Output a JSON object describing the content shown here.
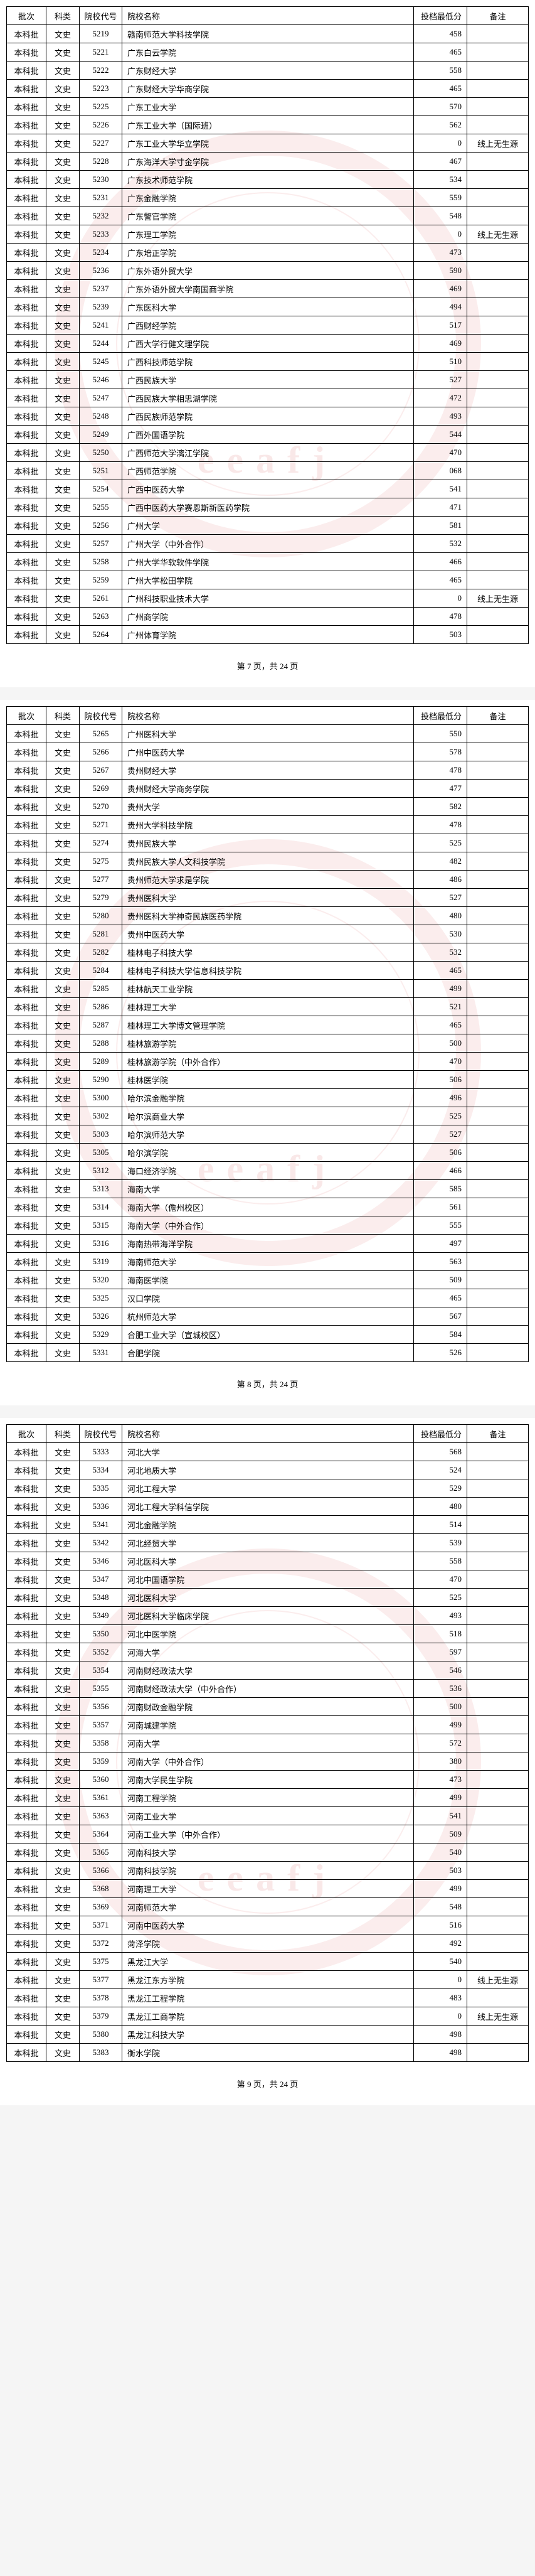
{
  "headers": {
    "batch": "批次",
    "category": "科类",
    "code": "院校代号",
    "name": "院校名称",
    "score": "投档最低分",
    "remark": "备注"
  },
  "footer_prefix": "第 ",
  "footer_mid": " 页，共 ",
  "footer_total": "24",
  "footer_suffix": " 页",
  "remark_no_source": "线上无生源",
  "pages": [
    {
      "page_num": "7",
      "rows": [
        {
          "batch": "本科批",
          "cat": "文史",
          "code": "5219",
          "name": "赣南师范大学科技学院",
          "score": "458",
          "remark": ""
        },
        {
          "batch": "本科批",
          "cat": "文史",
          "code": "5221",
          "name": "广东白云学院",
          "score": "465",
          "remark": ""
        },
        {
          "batch": "本科批",
          "cat": "文史",
          "code": "5222",
          "name": "广东财经大学",
          "score": "558",
          "remark": ""
        },
        {
          "batch": "本科批",
          "cat": "文史",
          "code": "5223",
          "name": "广东财经大学华商学院",
          "score": "465",
          "remark": ""
        },
        {
          "batch": "本科批",
          "cat": "文史",
          "code": "5225",
          "name": "广东工业大学",
          "score": "570",
          "remark": ""
        },
        {
          "batch": "本科批",
          "cat": "文史",
          "code": "5226",
          "name": "广东工业大学（国际班）",
          "score": "562",
          "remark": ""
        },
        {
          "batch": "本科批",
          "cat": "文史",
          "code": "5227",
          "name": "广东工业大学华立学院",
          "score": "0",
          "remark": "线上无生源"
        },
        {
          "batch": "本科批",
          "cat": "文史",
          "code": "5228",
          "name": "广东海洋大学寸金学院",
          "score": "467",
          "remark": ""
        },
        {
          "batch": "本科批",
          "cat": "文史",
          "code": "5230",
          "name": "广东技术师范学院",
          "score": "534",
          "remark": ""
        },
        {
          "batch": "本科批",
          "cat": "文史",
          "code": "5231",
          "name": "广东金融学院",
          "score": "559",
          "remark": ""
        },
        {
          "batch": "本科批",
          "cat": "文史",
          "code": "5232",
          "name": "广东警官学院",
          "score": "548",
          "remark": ""
        },
        {
          "batch": "本科批",
          "cat": "文史",
          "code": "5233",
          "name": "广东理工学院",
          "score": "0",
          "remark": "线上无生源"
        },
        {
          "batch": "本科批",
          "cat": "文史",
          "code": "5234",
          "name": "广东培正学院",
          "score": "473",
          "remark": ""
        },
        {
          "batch": "本科批",
          "cat": "文史",
          "code": "5236",
          "name": "广东外语外贸大学",
          "score": "590",
          "remark": ""
        },
        {
          "batch": "本科批",
          "cat": "文史",
          "code": "5237",
          "name": "广东外语外贸大学南国商学院",
          "score": "469",
          "remark": ""
        },
        {
          "batch": "本科批",
          "cat": "文史",
          "code": "5239",
          "name": "广东医科大学",
          "score": "494",
          "remark": ""
        },
        {
          "batch": "本科批",
          "cat": "文史",
          "code": "5241",
          "name": "广西财经学院",
          "score": "517",
          "remark": ""
        },
        {
          "batch": "本科批",
          "cat": "文史",
          "code": "5244",
          "name": "广西大学行健文理学院",
          "score": "469",
          "remark": ""
        },
        {
          "batch": "本科批",
          "cat": "文史",
          "code": "5245",
          "name": "广西科技师范学院",
          "score": "510",
          "remark": ""
        },
        {
          "batch": "本科批",
          "cat": "文史",
          "code": "5246",
          "name": "广西民族大学",
          "score": "527",
          "remark": ""
        },
        {
          "batch": "本科批",
          "cat": "文史",
          "code": "5247",
          "name": "广西民族大学相思湖学院",
          "score": "472",
          "remark": ""
        },
        {
          "batch": "本科批",
          "cat": "文史",
          "code": "5248",
          "name": "广西民族师范学院",
          "score": "493",
          "remark": ""
        },
        {
          "batch": "本科批",
          "cat": "文史",
          "code": "5249",
          "name": "广西外国语学院",
          "score": "544",
          "remark": ""
        },
        {
          "batch": "本科批",
          "cat": "文史",
          "code": "5250",
          "name": "广西师范大学漓江学院",
          "score": "470",
          "remark": ""
        },
        {
          "batch": "本科批",
          "cat": "文史",
          "code": "5251",
          "name": "广西师范学院",
          "score": "068",
          "remark": ""
        },
        {
          "batch": "本科批",
          "cat": "文史",
          "code": "5254",
          "name": "广西中医药大学",
          "score": "541",
          "remark": ""
        },
        {
          "batch": "本科批",
          "cat": "文史",
          "code": "5255",
          "name": "广西中医药大学赛恩斯新医药学院",
          "score": "471",
          "remark": ""
        },
        {
          "batch": "本科批",
          "cat": "文史",
          "code": "5256",
          "name": "广州大学",
          "score": "581",
          "remark": ""
        },
        {
          "batch": "本科批",
          "cat": "文史",
          "code": "5257",
          "name": "广州大学（中外合作）",
          "score": "532",
          "remark": ""
        },
        {
          "batch": "本科批",
          "cat": "文史",
          "code": "5258",
          "name": "广州大学华软软件学院",
          "score": "466",
          "remark": ""
        },
        {
          "batch": "本科批",
          "cat": "文史",
          "code": "5259",
          "name": "广州大学松田学院",
          "score": "465",
          "remark": ""
        },
        {
          "batch": "本科批",
          "cat": "文史",
          "code": "5261",
          "name": "广州科技职业技术大学",
          "score": "0",
          "remark": "线上无生源"
        },
        {
          "batch": "本科批",
          "cat": "文史",
          "code": "5263",
          "name": "广州商学院",
          "score": "478",
          "remark": ""
        },
        {
          "batch": "本科批",
          "cat": "文史",
          "code": "5264",
          "name": "广州体育学院",
          "score": "503",
          "remark": ""
        }
      ]
    },
    {
      "page_num": "8",
      "rows": [
        {
          "batch": "本科批",
          "cat": "文史",
          "code": "5265",
          "name": "广州医科大学",
          "score": "550",
          "remark": ""
        },
        {
          "batch": "本科批",
          "cat": "文史",
          "code": "5266",
          "name": "广州中医药大学",
          "score": "578",
          "remark": ""
        },
        {
          "batch": "本科批",
          "cat": "文史",
          "code": "5267",
          "name": "贵州财经大学",
          "score": "478",
          "remark": ""
        },
        {
          "batch": "本科批",
          "cat": "文史",
          "code": "5269",
          "name": "贵州财经大学商务学院",
          "score": "477",
          "remark": ""
        },
        {
          "batch": "本科批",
          "cat": "文史",
          "code": "5270",
          "name": "贵州大学",
          "score": "582",
          "remark": ""
        },
        {
          "batch": "本科批",
          "cat": "文史",
          "code": "5271",
          "name": "贵州大学科技学院",
          "score": "478",
          "remark": ""
        },
        {
          "batch": "本科批",
          "cat": "文史",
          "code": "5274",
          "name": "贵州民族大学",
          "score": "525",
          "remark": ""
        },
        {
          "batch": "本科批",
          "cat": "文史",
          "code": "5275",
          "name": "贵州民族大学人文科技学院",
          "score": "482",
          "remark": ""
        },
        {
          "batch": "本科批",
          "cat": "文史",
          "code": "5277",
          "name": "贵州师范大学求是学院",
          "score": "486",
          "remark": ""
        },
        {
          "batch": "本科批",
          "cat": "文史",
          "code": "5279",
          "name": "贵州医科大学",
          "score": "527",
          "remark": ""
        },
        {
          "batch": "本科批",
          "cat": "文史",
          "code": "5280",
          "name": "贵州医科大学神奇民族医药学院",
          "score": "480",
          "remark": ""
        },
        {
          "batch": "本科批",
          "cat": "文史",
          "code": "5281",
          "name": "贵州中医药大学",
          "score": "530",
          "remark": ""
        },
        {
          "batch": "本科批",
          "cat": "文史",
          "code": "5282",
          "name": "桂林电子科技大学",
          "score": "532",
          "remark": ""
        },
        {
          "batch": "本科批",
          "cat": "文史",
          "code": "5284",
          "name": "桂林电子科技大学信息科技学院",
          "score": "465",
          "remark": ""
        },
        {
          "batch": "本科批",
          "cat": "文史",
          "code": "5285",
          "name": "桂林航天工业学院",
          "score": "499",
          "remark": ""
        },
        {
          "batch": "本科批",
          "cat": "文史",
          "code": "5286",
          "name": "桂林理工大学",
          "score": "521",
          "remark": ""
        },
        {
          "batch": "本科批",
          "cat": "文史",
          "code": "5287",
          "name": "桂林理工大学博文管理学院",
          "score": "465",
          "remark": ""
        },
        {
          "batch": "本科批",
          "cat": "文史",
          "code": "5288",
          "name": "桂林旅游学院",
          "score": "500",
          "remark": ""
        },
        {
          "batch": "本科批",
          "cat": "文史",
          "code": "5289",
          "name": "桂林旅游学院（中外合作）",
          "score": "470",
          "remark": ""
        },
        {
          "batch": "本科批",
          "cat": "文史",
          "code": "5290",
          "name": "桂林医学院",
          "score": "506",
          "remark": ""
        },
        {
          "batch": "本科批",
          "cat": "文史",
          "code": "5300",
          "name": "哈尔滨金融学院",
          "score": "496",
          "remark": ""
        },
        {
          "batch": "本科批",
          "cat": "文史",
          "code": "5302",
          "name": "哈尔滨商业大学",
          "score": "525",
          "remark": ""
        },
        {
          "batch": "本科批",
          "cat": "文史",
          "code": "5303",
          "name": "哈尔滨师范大学",
          "score": "527",
          "remark": ""
        },
        {
          "batch": "本科批",
          "cat": "文史",
          "code": "5305",
          "name": "哈尔滨学院",
          "score": "506",
          "remark": ""
        },
        {
          "batch": "本科批",
          "cat": "文史",
          "code": "5312",
          "name": "海口经济学院",
          "score": "466",
          "remark": ""
        },
        {
          "batch": "本科批",
          "cat": "文史",
          "code": "5313",
          "name": "海南大学",
          "score": "585",
          "remark": ""
        },
        {
          "batch": "本科批",
          "cat": "文史",
          "code": "5314",
          "name": "海南大学（儋州校区）",
          "score": "561",
          "remark": ""
        },
        {
          "batch": "本科批",
          "cat": "文史",
          "code": "5315",
          "name": "海南大学（中外合作）",
          "score": "555",
          "remark": ""
        },
        {
          "batch": "本科批",
          "cat": "文史",
          "code": "5316",
          "name": "海南热带海洋学院",
          "score": "497",
          "remark": ""
        },
        {
          "batch": "本科批",
          "cat": "文史",
          "code": "5319",
          "name": "海南师范大学",
          "score": "563",
          "remark": ""
        },
        {
          "batch": "本科批",
          "cat": "文史",
          "code": "5320",
          "name": "海南医学院",
          "score": "509",
          "remark": ""
        },
        {
          "batch": "本科批",
          "cat": "文史",
          "code": "5325",
          "name": "汉口学院",
          "score": "465",
          "remark": ""
        },
        {
          "batch": "本科批",
          "cat": "文史",
          "code": "5326",
          "name": "杭州师范大学",
          "score": "567",
          "remark": ""
        },
        {
          "batch": "本科批",
          "cat": "文史",
          "code": "5329",
          "name": "合肥工业大学（宣城校区）",
          "score": "584",
          "remark": ""
        },
        {
          "batch": "本科批",
          "cat": "文史",
          "code": "5331",
          "name": "合肥学院",
          "score": "526",
          "remark": ""
        }
      ]
    },
    {
      "page_num": "9",
      "rows": [
        {
          "batch": "本科批",
          "cat": "文史",
          "code": "5333",
          "name": "河北大学",
          "score": "568",
          "remark": ""
        },
        {
          "batch": "本科批",
          "cat": "文史",
          "code": "5334",
          "name": "河北地质大学",
          "score": "524",
          "remark": ""
        },
        {
          "batch": "本科批",
          "cat": "文史",
          "code": "5335",
          "name": "河北工程大学",
          "score": "529",
          "remark": ""
        },
        {
          "batch": "本科批",
          "cat": "文史",
          "code": "5336",
          "name": "河北工程大学科信学院",
          "score": "480",
          "remark": ""
        },
        {
          "batch": "本科批",
          "cat": "文史",
          "code": "5341",
          "name": "河北金融学院",
          "score": "514",
          "remark": ""
        },
        {
          "batch": "本科批",
          "cat": "文史",
          "code": "5342",
          "name": "河北经贸大学",
          "score": "539",
          "remark": ""
        },
        {
          "batch": "本科批",
          "cat": "文史",
          "code": "5346",
          "name": "河北医科大学",
          "score": "558",
          "remark": ""
        },
        {
          "batch": "本科批",
          "cat": "文史",
          "code": "5347",
          "name": "河北中国语学院",
          "score": "470",
          "remark": ""
        },
        {
          "batch": "本科批",
          "cat": "文史",
          "code": "5348",
          "name": "河北医科大学",
          "score": "525",
          "remark": ""
        },
        {
          "batch": "本科批",
          "cat": "文史",
          "code": "5349",
          "name": "河北医科大学临床学院",
          "score": "493",
          "remark": ""
        },
        {
          "batch": "本科批",
          "cat": "文史",
          "code": "5350",
          "name": "河北中医学院",
          "score": "518",
          "remark": ""
        },
        {
          "batch": "本科批",
          "cat": "文史",
          "code": "5352",
          "name": "河海大学",
          "score": "597",
          "remark": ""
        },
        {
          "batch": "本科批",
          "cat": "文史",
          "code": "5354",
          "name": "河南财经政法大学",
          "score": "546",
          "remark": ""
        },
        {
          "batch": "本科批",
          "cat": "文史",
          "code": "5355",
          "name": "河南财经政法大学（中外合作）",
          "score": "536",
          "remark": ""
        },
        {
          "batch": "本科批",
          "cat": "文史",
          "code": "5356",
          "name": "河南财政金融学院",
          "score": "500",
          "remark": ""
        },
        {
          "batch": "本科批",
          "cat": "文史",
          "code": "5357",
          "name": "河南城建学院",
          "score": "499",
          "remark": ""
        },
        {
          "batch": "本科批",
          "cat": "文史",
          "code": "5358",
          "name": "河南大学",
          "score": "572",
          "remark": ""
        },
        {
          "batch": "本科批",
          "cat": "文史",
          "code": "5359",
          "name": "河南大学（中外合作）",
          "score": "380",
          "remark": ""
        },
        {
          "batch": "本科批",
          "cat": "文史",
          "code": "5360",
          "name": "河南大学民生学院",
          "score": "473",
          "remark": ""
        },
        {
          "batch": "本科批",
          "cat": "文史",
          "code": "5361",
          "name": "河南工程学院",
          "score": "499",
          "remark": ""
        },
        {
          "batch": "本科批",
          "cat": "文史",
          "code": "5363",
          "name": "河南工业大学",
          "score": "541",
          "remark": ""
        },
        {
          "batch": "本科批",
          "cat": "文史",
          "code": "5364",
          "name": "河南工业大学（中外合作）",
          "score": "509",
          "remark": ""
        },
        {
          "batch": "本科批",
          "cat": "文史",
          "code": "5365",
          "name": "河南科技大学",
          "score": "540",
          "remark": ""
        },
        {
          "batch": "本科批",
          "cat": "文史",
          "code": "5366",
          "name": "河南科技学院",
          "score": "503",
          "remark": ""
        },
        {
          "batch": "本科批",
          "cat": "文史",
          "code": "5368",
          "name": "河南理工大学",
          "score": "499",
          "remark": ""
        },
        {
          "batch": "本科批",
          "cat": "文史",
          "code": "5369",
          "name": "河南师范大学",
          "score": "548",
          "remark": ""
        },
        {
          "batch": "本科批",
          "cat": "文史",
          "code": "5371",
          "name": "河南中医药大学",
          "score": "516",
          "remark": ""
        },
        {
          "batch": "本科批",
          "cat": "文史",
          "code": "5372",
          "name": "菏泽学院",
          "score": "492",
          "remark": ""
        },
        {
          "batch": "本科批",
          "cat": "文史",
          "code": "5375",
          "name": "黑龙江大学",
          "score": "540",
          "remark": ""
        },
        {
          "batch": "本科批",
          "cat": "文史",
          "code": "5377",
          "name": "黑龙江东方学院",
          "score": "0",
          "remark": "线上无生源"
        },
        {
          "batch": "本科批",
          "cat": "文史",
          "code": "5378",
          "name": "黑龙江工程学院",
          "score": "483",
          "remark": ""
        },
        {
          "batch": "本科批",
          "cat": "文史",
          "code": "5379",
          "name": "黑龙江工商学院",
          "score": "0",
          "remark": "线上无生源"
        },
        {
          "batch": "本科批",
          "cat": "文史",
          "code": "5380",
          "name": "黑龙江科技大学",
          "score": "498",
          "remark": ""
        },
        {
          "batch": "本科批",
          "cat": "文史",
          "code": "5383",
          "name": "衡水学院",
          "score": "498",
          "remark": ""
        }
      ]
    }
  ]
}
